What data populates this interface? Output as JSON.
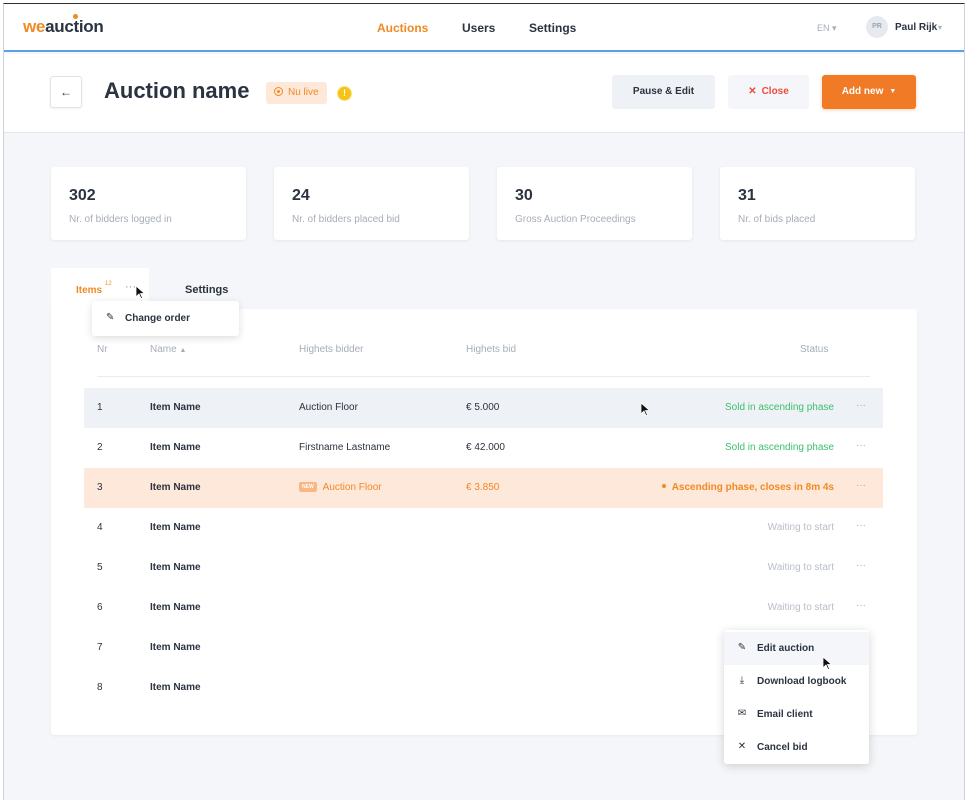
{
  "logo": {
    "part1": "we",
    "part2": "auction"
  },
  "nav": {
    "links": [
      {
        "label": "Auctions",
        "active": true
      },
      {
        "label": "Users",
        "active": false
      },
      {
        "label": "Settings",
        "active": false
      }
    ],
    "language": "EN",
    "user": {
      "initials": "PR",
      "name": "Paul Rijk"
    }
  },
  "header": {
    "back_icon": "←",
    "title": "Auction name",
    "live_label": "Nu live",
    "warning_icon": "!",
    "pause_label": "Pause & Edit",
    "close_label": "Close",
    "add_label": "Add new"
  },
  "stats": [
    {
      "value": "302",
      "label": "Nr. of bidders logged in"
    },
    {
      "value": "24",
      "label": "Nr. of bidders placed bid"
    },
    {
      "value": "30",
      "label": "Gross Auction Proceedings"
    },
    {
      "value": "31",
      "label": "Nr. of bids placed"
    }
  ],
  "tabs": {
    "items_label": "Items",
    "items_count": "12",
    "items_more": "···",
    "settings_label": "Settings"
  },
  "order_menu": {
    "label": "Change order"
  },
  "table": {
    "columns": {
      "nr": "Nr",
      "name": "Name",
      "bidder": "Highets bidder",
      "bid": "Highets bid",
      "status": "Status"
    },
    "more": "···",
    "new_tag": "NEW",
    "rows": [
      {
        "nr": "1",
        "name": "Item Name",
        "bidder": "Auction Floor",
        "bid": "€ 5.000",
        "status": "Sold in ascending phase"
      },
      {
        "nr": "2",
        "name": "Item Name",
        "bidder": "Firstname Lastname",
        "bid": "€ 42.000",
        "status": "Sold in ascending phase"
      },
      {
        "nr": "3",
        "name": "Item Name",
        "bidder": "Auction Floor",
        "bid": "€ 3.850",
        "status": "Ascending phase, closes in 8m 4s"
      },
      {
        "nr": "4",
        "name": "Item Name",
        "bidder": "",
        "bid": "",
        "status": "Waiting to start"
      },
      {
        "nr": "5",
        "name": "Item Name",
        "bidder": "",
        "bid": "",
        "status": "Waiting to start"
      },
      {
        "nr": "6",
        "name": "Item Name",
        "bidder": "",
        "bid": "",
        "status": "Waiting to start"
      },
      {
        "nr": "7",
        "name": "Item Name",
        "bidder": "",
        "bid": "",
        "status": ""
      },
      {
        "nr": "8",
        "name": "Item Name",
        "bidder": "",
        "bid": "",
        "status": ""
      }
    ]
  },
  "action_menu": {
    "items": [
      {
        "label": "Edit auction",
        "icon": "pencil-icon"
      },
      {
        "label": "Download logbook",
        "icon": "download-icon"
      },
      {
        "label": "Email client",
        "icon": "mail-icon"
      },
      {
        "label": "Cancel bid",
        "icon": "close-icon"
      }
    ]
  },
  "colors": {
    "accent": "#f07a26",
    "success": "#3bbf6a",
    "danger": "#ec4c3c",
    "nav_underline": "#5aa0e6"
  }
}
